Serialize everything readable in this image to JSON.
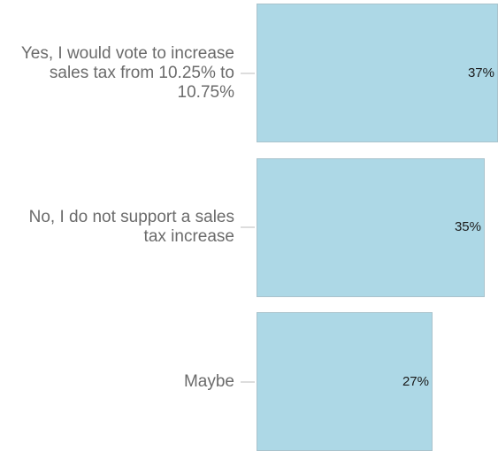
{
  "chart_data": {
    "type": "bar",
    "orientation": "horizontal",
    "categories": [
      "Yes, I would vote to increase sales tax from 10.25% to 10.75%",
      "No, I do not support a sales tax increase",
      "Maybe"
    ],
    "values": [
      37,
      35,
      27
    ],
    "data_labels": [
      "37%",
      "35%",
      "27%"
    ],
    "xlim": [
      0,
      37
    ],
    "grid": false,
    "title": "",
    "xlabel": "",
    "ylabel": "",
    "bar_color": "#add8e6",
    "bar_border_color": "#a9c3cc",
    "label_color": "#6b6b6b"
  }
}
